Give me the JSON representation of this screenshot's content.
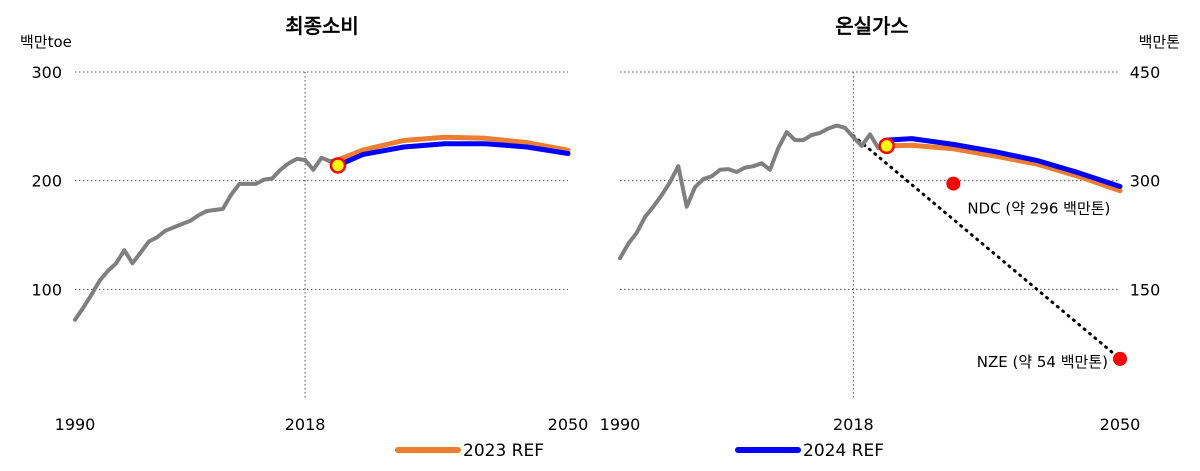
{
  "colors": {
    "history": "#7f7f7f",
    "ref2023": "#ed7d31",
    "ref2024": "#0000ff",
    "marker_fill": "#ffff00",
    "marker_edge": "#ff0000",
    "target": "#ff0000",
    "grid": "#555555"
  },
  "legend": {
    "ref2023": "2023 REF",
    "ref2024": "2024 REF"
  },
  "chart_data": [
    {
      "type": "line",
      "title": "최종소비",
      "ylabel": "백만toe",
      "xlim": [
        1990,
        2050
      ],
      "ylim": [
        0,
        300
      ],
      "yticks": [
        100,
        200,
        300
      ],
      "xticks": [
        1990,
        2018,
        2050
      ],
      "grid": "horizontal dotted at y ticks, vertical dotted at 2018",
      "series": [
        {
          "key": "history",
          "x": [
            1990,
            1991,
            1992,
            1993,
            1994,
            1995,
            1996,
            1997,
            1998,
            1999,
            2000,
            2001,
            2002,
            2003,
            2004,
            2005,
            2006,
            2007,
            2008,
            2009,
            2010,
            2011,
            2012,
            2013,
            2014,
            2015,
            2016,
            2017,
            2018,
            2019,
            2020,
            2021,
            2022
          ],
          "values": [
            72,
            83,
            95,
            108,
            117,
            124,
            136,
            124,
            134,
            144,
            148,
            154,
            157,
            160,
            163,
            168,
            172,
            173,
            174,
            187,
            197,
            197,
            197,
            201,
            202,
            210,
            216,
            220,
            219,
            210,
            221,
            218,
            219
          ]
        },
        {
          "key": "ref2023",
          "x": [
            2022,
            2025,
            2030,
            2035,
            2040,
            2045,
            2050
          ],
          "values": [
            219,
            228,
            237,
            240,
            239,
            235,
            228
          ]
        },
        {
          "key": "ref2024",
          "x": [
            2022,
            2025,
            2030,
            2035,
            2040,
            2045,
            2050
          ],
          "values": [
            214,
            224,
            231,
            234,
            234,
            231,
            225
          ]
        }
      ],
      "base_marker": {
        "x": 2022,
        "y": 214
      }
    },
    {
      "type": "line",
      "title": "온실가스",
      "ylabel": "백만톤",
      "xlim": [
        1990,
        2050
      ],
      "ylim": [
        0,
        450
      ],
      "yticks": [
        150,
        300,
        450
      ],
      "xticks": [
        1990,
        2018,
        2050
      ],
      "y_axis_side": "right",
      "grid": "horizontal dotted at y ticks, vertical dotted at 2018",
      "series": [
        {
          "key": "history",
          "x": [
            1990,
            1991,
            1992,
            1993,
            1994,
            1995,
            1996,
            1997,
            1998,
            1999,
            2000,
            2001,
            2002,
            2003,
            2004,
            2005,
            2006,
            2007,
            2008,
            2009,
            2010,
            2011,
            2012,
            2013,
            2014,
            2015,
            2016,
            2017,
            2018,
            2019,
            2020,
            2021,
            2022
          ],
          "values": [
            193,
            213,
            228,
            250,
            264,
            280,
            298,
            320,
            264,
            291,
            302,
            306,
            315,
            316,
            312,
            318,
            320,
            324,
            315,
            345,
            367,
            356,
            356,
            363,
            366,
            372,
            376,
            373,
            360,
            348,
            364,
            345,
            348
          ]
        },
        {
          "key": "ref2023",
          "x": [
            2022,
            2025,
            2030,
            2035,
            2040,
            2045,
            2050
          ],
          "values": [
            348,
            349,
            344,
            334,
            323,
            306,
            286
          ]
        },
        {
          "key": "ref2024",
          "x": [
            2022,
            2025,
            2030,
            2035,
            2040,
            2045,
            2050
          ],
          "values": [
            356,
            358,
            350,
            340,
            328,
            311,
            292
          ]
        }
      ],
      "base_marker": {
        "x": 2022,
        "y": 348
      },
      "targets": [
        {
          "label": "NDC (약 296 백만톤)",
          "x": 2030,
          "y": 296
        },
        {
          "label": "NZE (약 54 백만톤)",
          "x": 2050,
          "y": 54
        }
      ],
      "trajectory": {
        "style": "dotted",
        "x": [
          2018,
          2050
        ],
        "y": [
          362,
          54
        ]
      }
    }
  ]
}
